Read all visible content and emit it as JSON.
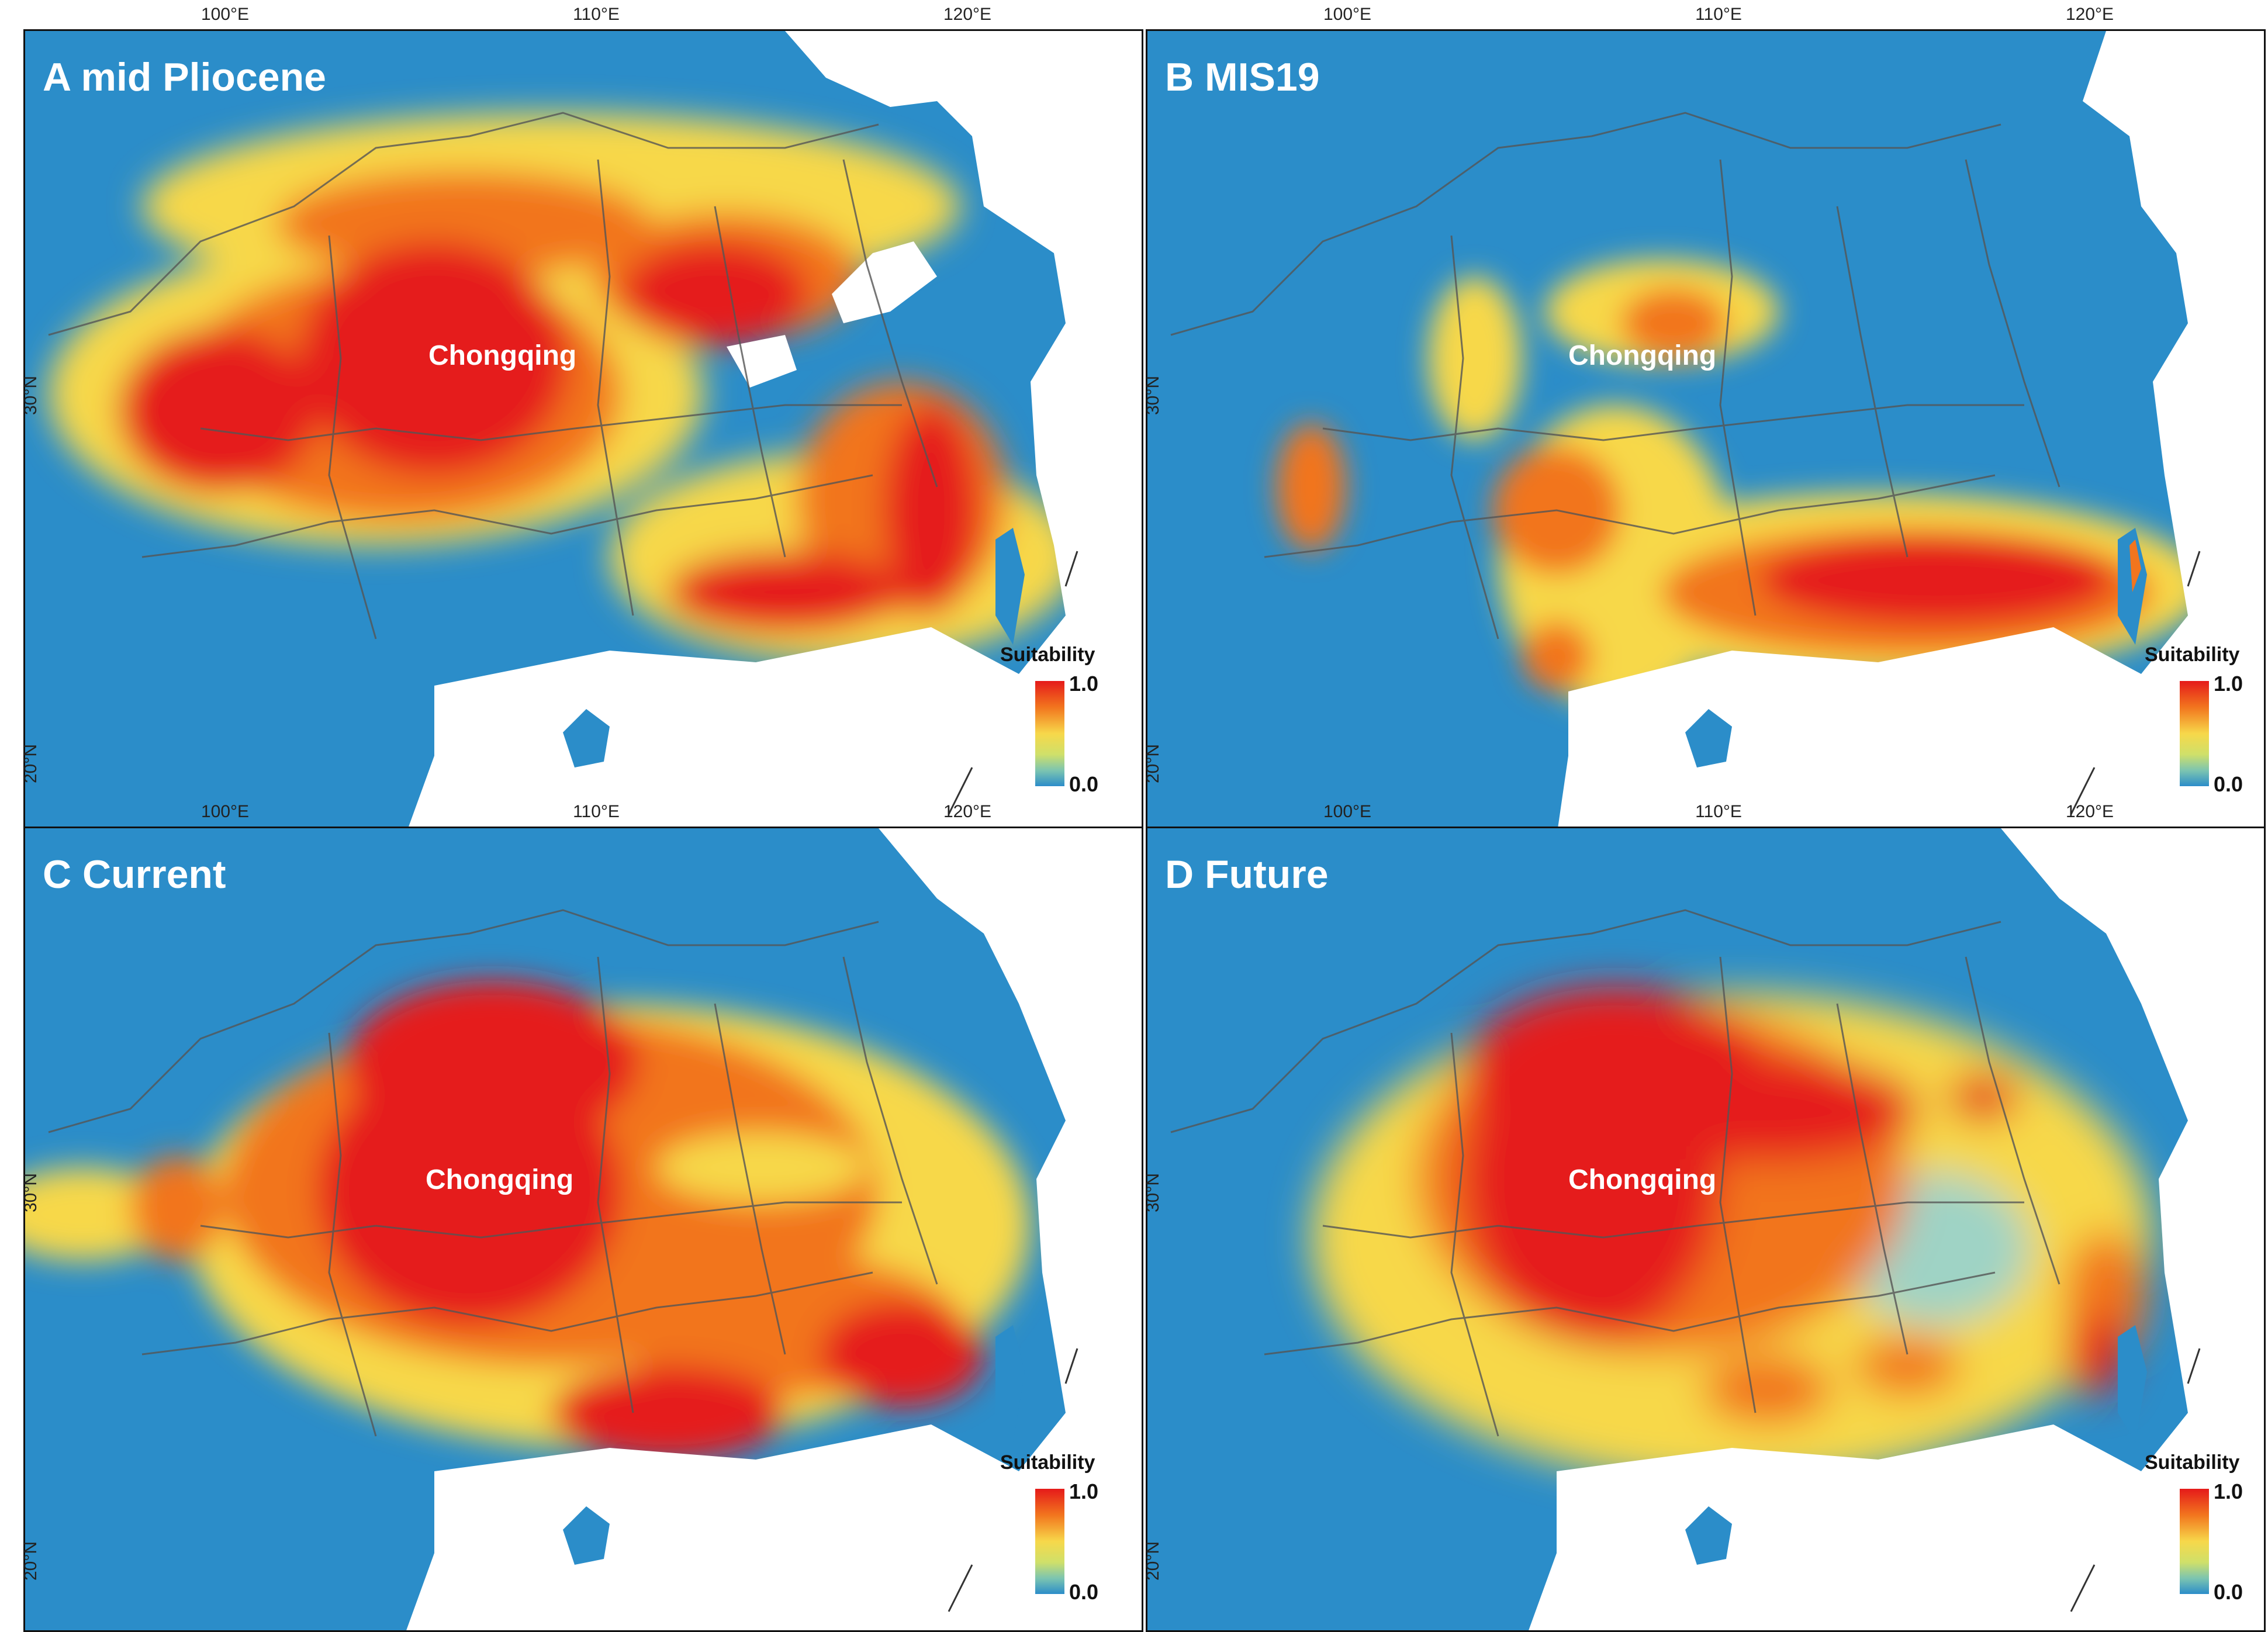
{
  "panels": [
    {
      "title": "A mid Pliocene",
      "city": "Chongqing"
    },
    {
      "title": "B MIS19",
      "city": "Chongqing"
    },
    {
      "title": "C Current",
      "city": "Chongqing"
    },
    {
      "title": "D Future",
      "city": "Chongqing"
    }
  ],
  "axes": {
    "lon_labels": [
      "100°E",
      "110°E",
      "120°E"
    ],
    "lat_labels": [
      "30°N",
      "20°N"
    ]
  },
  "legend": {
    "title": "Suitability",
    "max_label": "1.0",
    "min_label": "0.0",
    "colors": [
      "#e51a1a",
      "#f2751e",
      "#f7d84a",
      "#cfe06a",
      "#7cc5b0",
      "#2b8dc9"
    ]
  },
  "colors": {
    "unsuitable": "#2b8dc9",
    "moderate": "#f7d84a",
    "high": "#f2751e",
    "highest": "#e51a1a",
    "sea": "#ffffff",
    "boundary": "#555555"
  }
}
